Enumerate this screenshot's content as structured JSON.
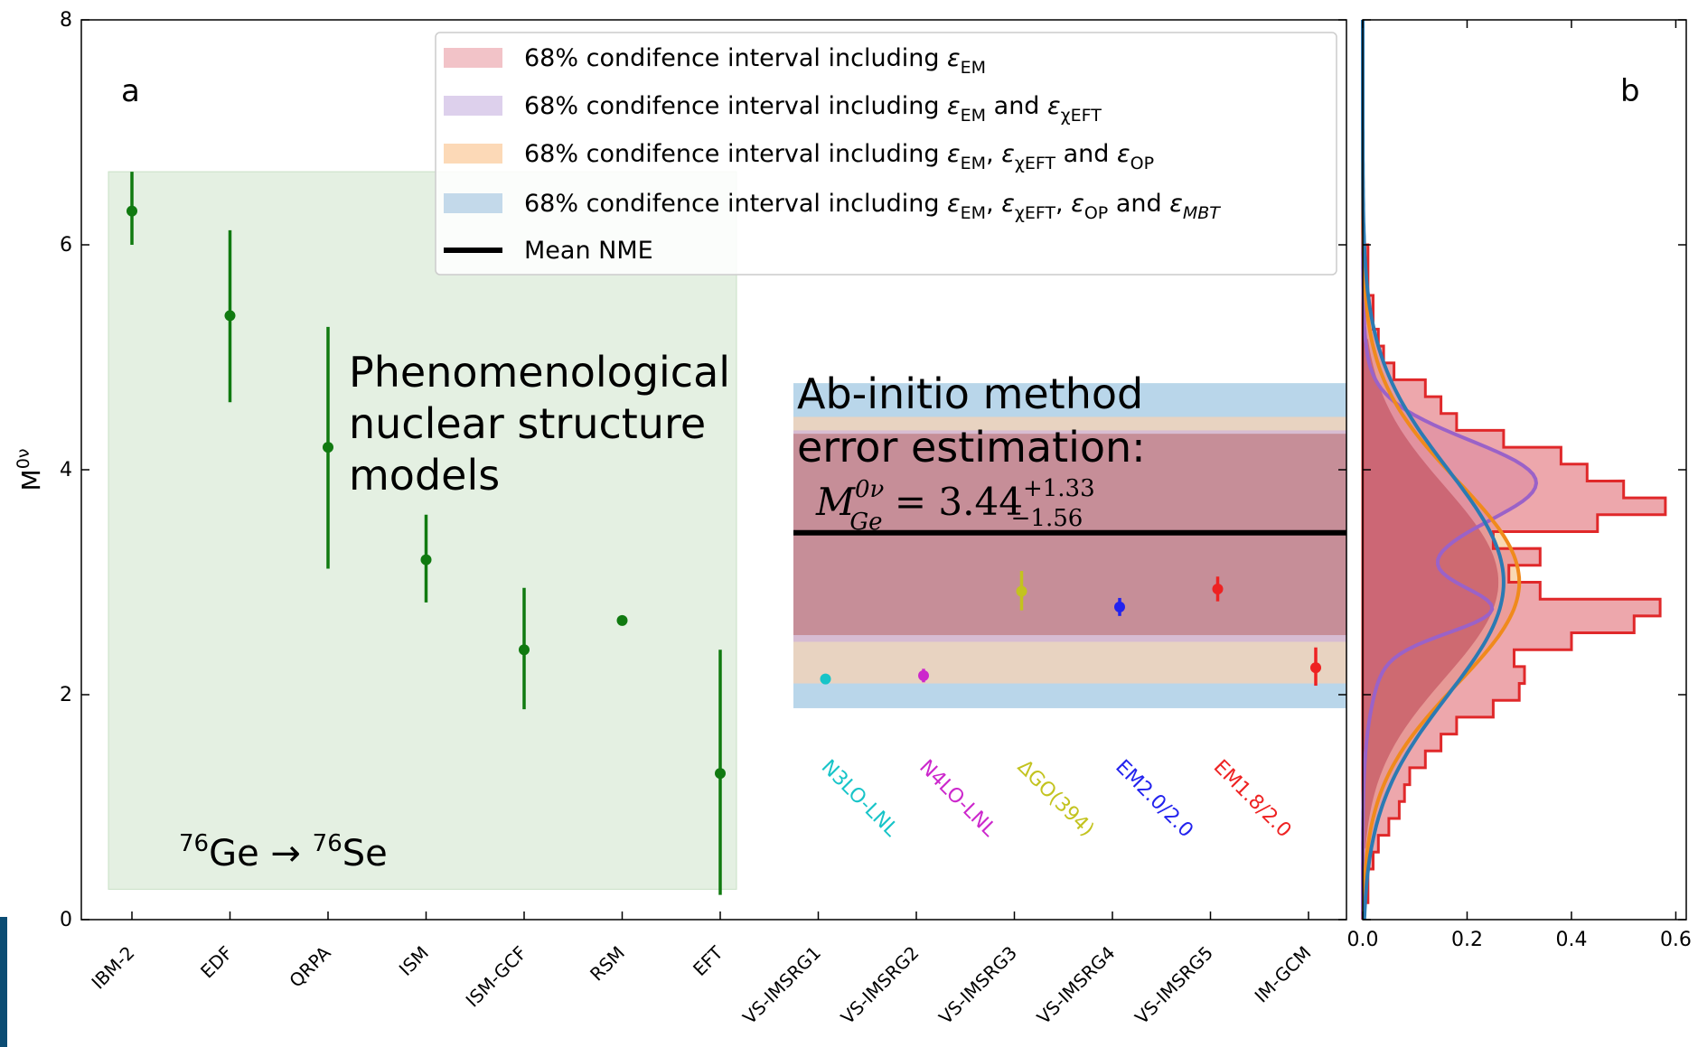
{
  "chart_data": [
    {
      "panel_label": "a",
      "type": "scatter",
      "ylabel": "M",
      "ylabel_sup": "0ν",
      "ylim": [
        0,
        8
      ],
      "y_ticks": [
        "0",
        "2",
        "4",
        "6",
        "8"
      ],
      "categories": [
        "IBM-2",
        "EDF",
        "QRPA",
        "ISM",
        "ISM-GCF",
        "RSM",
        "EFT",
        "VS-IMSRG1",
        "VS-IMSRG2",
        "VS-IMSRG3",
        "VS-IMSRG4",
        "VS-IMSRG5",
        "IM-GCM"
      ],
      "phenomenological": {
        "label_lines": [
          "Phenomenological",
          "nuclear structure",
          "models"
        ],
        "points": [
          {
            "category": "IBM-2",
            "value": 6.3,
            "low": 6.0,
            "high": 6.65
          },
          {
            "category": "EDF",
            "value": 5.37,
            "low": 4.6,
            "high": 6.13
          },
          {
            "category": "QRPA",
            "value": 4.2,
            "low": 3.12,
            "high": 5.27
          },
          {
            "category": "ISM",
            "value": 3.2,
            "low": 2.82,
            "high": 3.6
          },
          {
            "category": "ISM-GCF",
            "value": 2.4,
            "low": 1.87,
            "high": 2.95
          },
          {
            "category": "RSM",
            "value": 2.66,
            "low": 2.66,
            "high": 2.66
          },
          {
            "category": "EFT",
            "value": 1.3,
            "low": 0.22,
            "high": 2.4
          }
        ],
        "color": "#107a10"
      },
      "ab_initio": {
        "label_lines": [
          "Ab-initio method",
          "error estimation:"
        ],
        "formula": {
          "base": "M",
          "sup": "0ν",
          "sub": "Ge",
          "eq": " = 3.44",
          "plus": "+1.33",
          "minus": "−1.56"
        },
        "mean": 3.44,
        "bands": [
          {
            "low": 1.88,
            "high": 4.77,
            "color": "#b9d6ea"
          },
          {
            "low": 2.1,
            "high": 4.47,
            "color": "#e8d3c1"
          },
          {
            "low": 2.47,
            "high": 4.35,
            "color": "#d7bcd2"
          },
          {
            "low": 2.53,
            "high": 4.32,
            "color": "#c68e98"
          }
        ],
        "interactions": [
          {
            "name": "N3LO-LNL",
            "color": "#17c4c8"
          },
          {
            "name": "N4LO-LNL",
            "color": "#cc27cc"
          },
          {
            "name": "ΔGO(394)",
            "color": "#c3c31f"
          },
          {
            "name": "EM2.0/2.0",
            "color": "#2222ee"
          },
          {
            "name": "EM1.8/2.0",
            "color": "#ee2222"
          }
        ],
        "points": [
          {
            "category": "VS-IMSRG1",
            "value": 2.14,
            "low": 2.12,
            "high": 2.16,
            "color": "#17c4c8"
          },
          {
            "category": "VS-IMSRG2",
            "value": 2.17,
            "low": 2.11,
            "high": 2.23,
            "color": "#cc27cc"
          },
          {
            "category": "VS-IMSRG3",
            "value": 2.92,
            "low": 2.75,
            "high": 3.1,
            "color": "#c3c31f"
          },
          {
            "category": "VS-IMSRG4",
            "value": 2.78,
            "low": 2.7,
            "high": 2.86,
            "color": "#2222ee"
          },
          {
            "category": "VS-IMSRG5",
            "value": 2.94,
            "low": 2.83,
            "high": 3.05,
            "color": "#ee2222"
          },
          {
            "category": "IM-GCM",
            "value": 2.24,
            "low": 2.08,
            "high": 2.42,
            "color": "#ee2222"
          }
        ]
      },
      "reaction_label": {
        "a1": "76",
        "el1": "Ge",
        "arrow": " → ",
        "a2": "76",
        "el2": "Se"
      },
      "legend": {
        "placement": "top-right",
        "entries": [
          {
            "prefix": "68% condifence interval including ",
            "color": "#f2c3c8",
            "terms": [
              {
                "t": "",
                "sym": "ε",
                "sub": "EM"
              }
            ]
          },
          {
            "prefix": "68% condifence interval including ",
            "color": "#ddd0ec",
            "terms": [
              {
                "t": "",
                "sym": "ε",
                "sub": "EM"
              },
              {
                "t": " and ",
                "sym": "ε",
                "sub": "χEFT"
              }
            ]
          },
          {
            "prefix": "68% condifence interval including ",
            "color": "#fcd9b7",
            "terms": [
              {
                "t": "",
                "sym": "ε",
                "sub": "EM"
              },
              {
                "t": ", ",
                "sym": "ε",
                "sub": "χEFT"
              },
              {
                "t": " and ",
                "sym": "ε",
                "sub": "OP"
              }
            ]
          },
          {
            "prefix": "68% condifence interval including ",
            "color": "#c3d9ea",
            "terms": [
              {
                "t": "",
                "sym": "ε",
                "sub": "EM"
              },
              {
                "t": ", ",
                "sym": "ε",
                "sub": "χEFT"
              },
              {
                "t": ", ",
                "sym": "ε",
                "sub": "OP"
              },
              {
                "t": " and ",
                "sym": "ε",
                "sub": "MBT",
                "italic_sub": true
              }
            ]
          },
          {
            "prefix": "Mean NME",
            "color": "#000000",
            "line": true,
            "terms": []
          }
        ]
      }
    },
    {
      "panel_label": "b",
      "type": "area",
      "xlim": [
        0,
        0.62
      ],
      "x_ticks": [
        "0.0",
        "0.2",
        "0.4",
        "0.6"
      ],
      "ylim": [
        0,
        8
      ],
      "histogram": {
        "bin_width": 0.15,
        "edge_color": "#e0282a",
        "fill_color": "#e78a90",
        "y_centers": [
          0.075,
          0.225,
          0.375,
          0.525,
          0.675,
          0.825,
          0.975,
          1.125,
          1.275,
          1.425,
          1.575,
          1.725,
          1.875,
          2.025,
          2.175,
          2.325,
          2.475,
          2.625,
          2.775,
          2.925,
          3.075,
          3.225,
          3.375,
          3.525,
          3.675,
          3.825,
          3.975,
          4.125,
          4.275,
          4.425,
          4.575,
          4.725,
          4.875,
          5.025,
          5.175,
          5.325,
          5.475,
          5.625,
          5.775,
          5.925,
          6.075,
          6.225,
          6.375,
          6.525,
          6.675,
          6.825,
          6.975,
          7.125,
          7.275,
          7.425,
          7.575,
          7.725,
          7.875
        ],
        "densities": [
          0.0,
          0.01,
          0.01,
          0.02,
          0.03,
          0.05,
          0.07,
          0.08,
          0.09,
          0.12,
          0.15,
          0.18,
          0.25,
          0.3,
          0.31,
          0.29,
          0.4,
          0.52,
          0.57,
          0.34,
          0.28,
          0.34,
          0.25,
          0.45,
          0.58,
          0.5,
          0.43,
          0.38,
          0.27,
          0.18,
          0.15,
          0.12,
          0.06,
          0.04,
          0.03,
          0.02,
          0.02,
          0.01,
          0.01,
          0.01,
          0.0,
          0.0,
          0.0,
          0.0,
          0.0,
          0.0,
          0.0,
          0.0,
          0.0,
          0.0,
          0.0,
          0.0,
          0.0
        ]
      },
      "kde_curves": [
        {
          "name": "EM",
          "color": "#9a62c8",
          "fill": "#c79fd6",
          "components": [
            {
              "mu": 2.75,
              "sigma": 0.2,
              "amp": 0.17
            },
            {
              "mu": 3.92,
              "sigma": 0.35,
              "amp": 0.26
            },
            {
              "mu": 3.3,
              "sigma": 0.75,
              "amp": 0.1
            }
          ]
        },
        {
          "name": "EM+χEFT+OP",
          "color": "#f08a1c",
          "fill": "#f7c893",
          "components": [
            {
              "mu": 3.0,
              "sigma": 0.9,
              "amp": 0.3
            }
          ]
        },
        {
          "name": "EM+χEFT+OP+MBT",
          "color": "#2b7ab3",
          "fill": "#a9c7df",
          "components": [
            {
              "mu": 3.0,
              "sigma": 1.0,
              "amp": 0.27
            }
          ]
        }
      ]
    }
  ]
}
